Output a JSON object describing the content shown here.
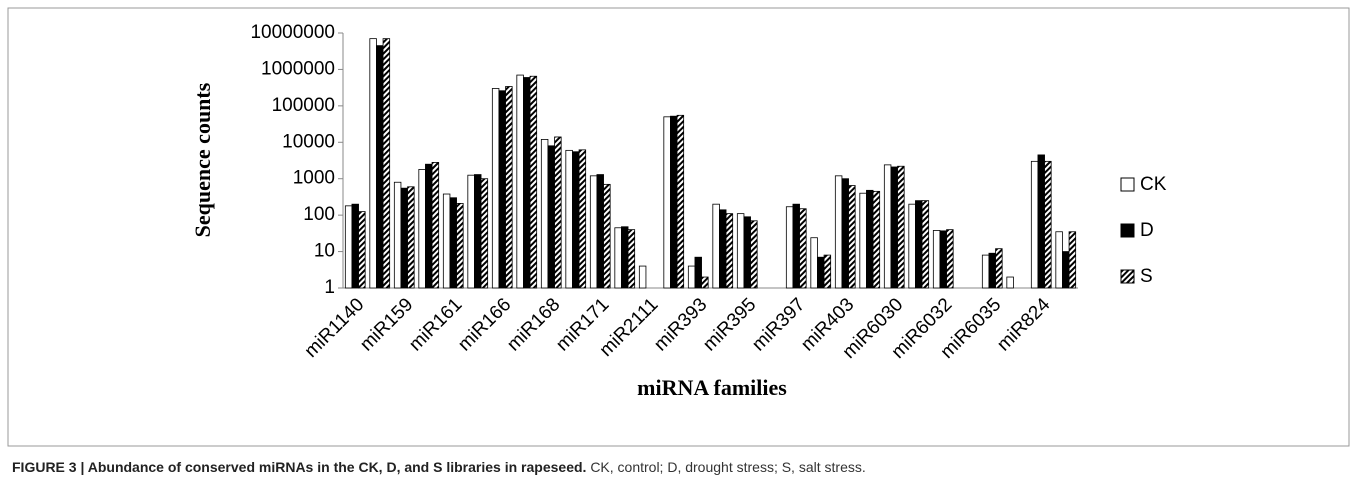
{
  "chart_data": {
    "type": "bar",
    "log_scale": true,
    "ylabel": "Sequence counts",
    "xlabel": "miRNA families",
    "categories": [
      "miR1140",
      null,
      "miR159",
      null,
      "miR161",
      null,
      "miR166",
      null,
      "miR168",
      null,
      "miR171",
      null,
      "miR2111",
      null,
      "miR393",
      null,
      "miR395",
      null,
      "miR397",
      null,
      "miR403",
      null,
      "miR6030",
      null,
      "miR6032",
      null,
      "miR6035",
      null,
      "miR824",
      null
    ],
    "series": [
      {
        "name": "CK",
        "color": "#ffffff",
        "values": [
          180,
          7000000,
          800,
          1800,
          380,
          1250,
          300000,
          700000,
          12000,
          6000,
          1200,
          45,
          4,
          50000,
          4,
          200,
          110,
          null,
          170,
          24,
          1200,
          400,
          2400,
          200,
          38,
          null,
          8,
          2,
          3000,
          35
        ]
      },
      {
        "name": "D",
        "color": "#000000",
        "values": [
          200,
          4500000,
          550,
          2500,
          300,
          1300,
          260000,
          600000,
          8000,
          5500,
          1300,
          48,
          null,
          52000,
          7,
          140,
          90,
          null,
          200,
          7,
          1000,
          480,
          2100,
          250,
          37,
          null,
          9,
          null,
          4500,
          10
        ]
      },
      {
        "name": "S",
        "color": "#000000",
        "pattern": "hatch",
        "values": [
          125,
          7000000,
          600,
          2800,
          210,
          1000,
          340000,
          650000,
          14000,
          6200,
          700,
          40,
          null,
          55000,
          2,
          110,
          70,
          null,
          150,
          8,
          650,
          450,
          2200,
          250,
          40,
          null,
          12,
          null,
          3000,
          35
        ]
      }
    ],
    "ylim": [
      1,
      10000000
    ],
    "yticks": [
      1,
      10,
      100,
      1000,
      10000,
      100000,
      1000000,
      10000000
    ],
    "legend": "right"
  },
  "caption": {
    "title": "FIGURE 3 | Abundance of conserved miRNAs in the CK, D, and S libraries in rapeseed.",
    "text": "CK, control; D, drought stress; S, salt stress."
  }
}
